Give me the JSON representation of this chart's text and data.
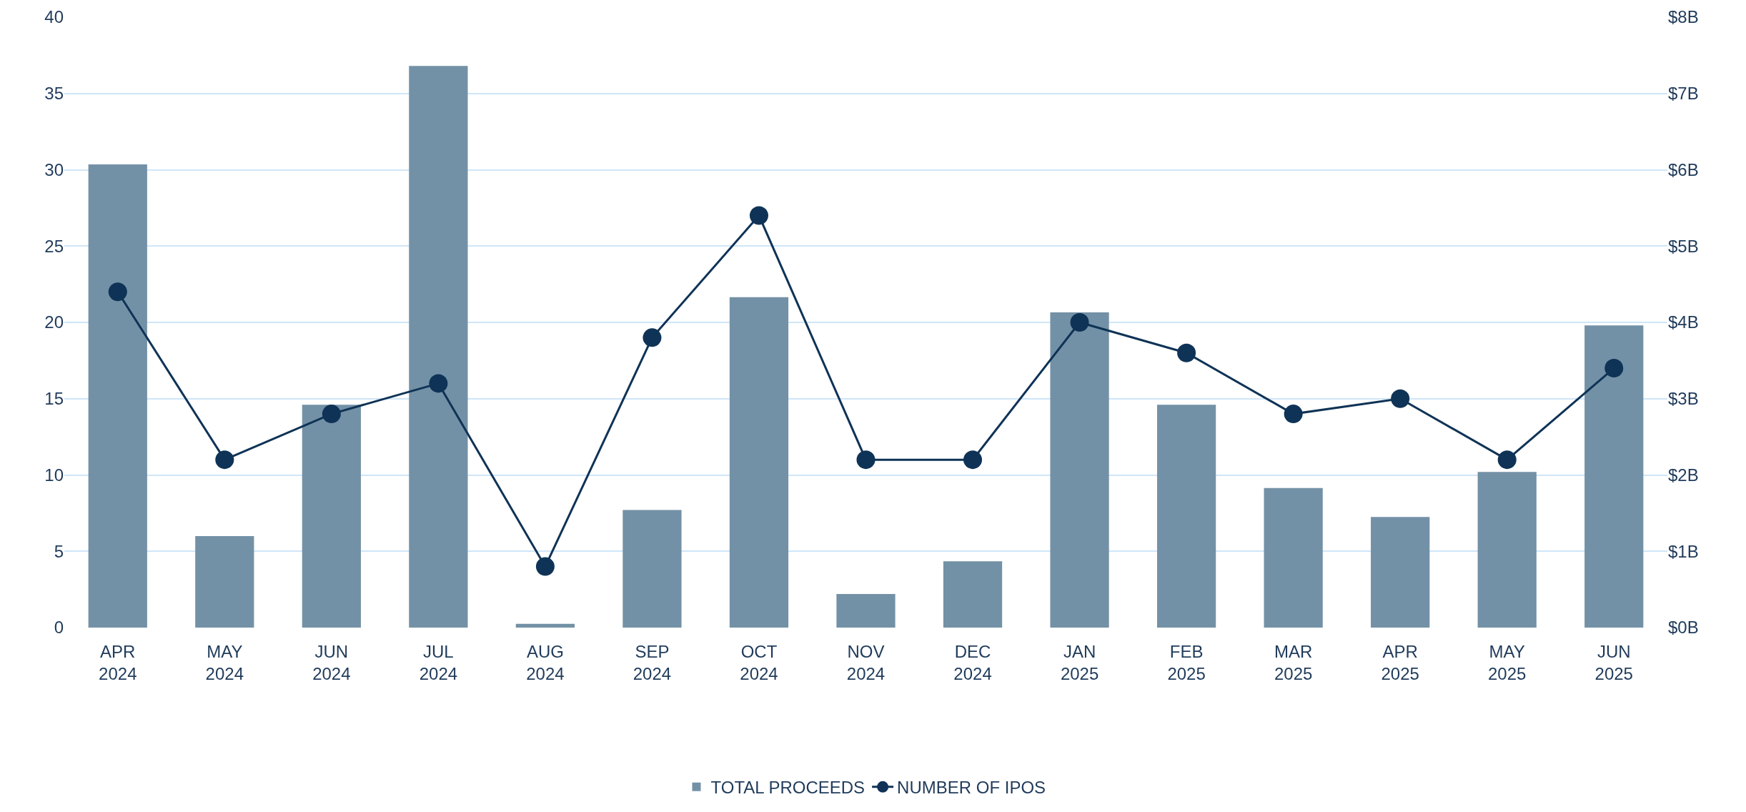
{
  "chart_data": {
    "type": "bar",
    "categories": [
      "APR 2024",
      "MAY 2024",
      "JUN 2024",
      "JUL 2024",
      "AUG 2024",
      "SEP 2024",
      "OCT 2024",
      "NOV 2024",
      "DEC 2024",
      "JAN 2025",
      "FEB 2025",
      "MAR 2025",
      "APR 2025",
      "MAY 2025",
      "JUN 2025"
    ],
    "series": [
      {
        "name": "TOTAL PROCEEDS",
        "axis": "y2",
        "color": "#7391a6",
        "values": [
          6.07,
          1.2,
          2.92,
          7.36,
          0.05,
          1.54,
          4.33,
          0.44,
          0.87,
          4.13,
          2.92,
          1.83,
          1.45,
          2.04,
          3.96
        ]
      },
      {
        "name": "NUMBER OF IPOS",
        "type": "line",
        "color": "#0f3356",
        "marker": "circle",
        "line_style": "solid",
        "values": [
          22,
          11,
          14,
          16,
          4,
          19,
          27,
          11,
          11,
          20,
          18,
          14,
          15,
          11,
          17
        ]
      }
    ],
    "ylim": [
      0,
      40
    ],
    "yticks": [
      0,
      5,
      10,
      15,
      20,
      25,
      30,
      35,
      40
    ],
    "y2lim": [
      0,
      8
    ],
    "y2ticks": [
      {
        "value": 0,
        "label": "$0B"
      },
      {
        "value": 1,
        "label": "$1B"
      },
      {
        "value": 2,
        "label": "$2B"
      },
      {
        "value": 3,
        "label": "$3B"
      },
      {
        "value": 4,
        "label": "$4B"
      },
      {
        "value": 5,
        "label": "$5B"
      },
      {
        "value": 6,
        "label": "$6B"
      },
      {
        "value": 7,
        "label": "$7B"
      },
      {
        "value": 8,
        "label": "$8B"
      }
    ],
    "grid": "y",
    "legend": "bottom"
  }
}
